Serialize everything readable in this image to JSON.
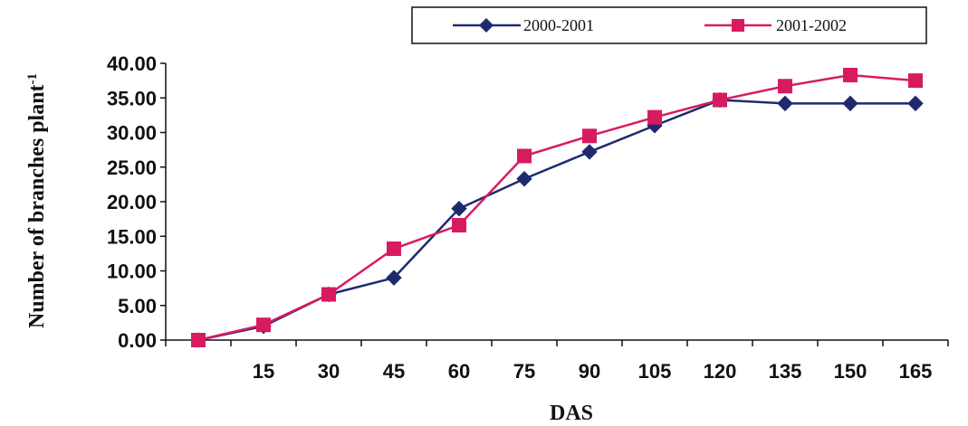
{
  "chart_data": {
    "type": "line",
    "categories": [
      "",
      "15",
      "30",
      "45",
      "60",
      "75",
      "90",
      "105",
      "120",
      "135",
      "150",
      "165"
    ],
    "xlabel": "DAS",
    "ylabel": "Number of branches plant",
    "ylabel_superscript": "-1",
    "ylim": [
      0,
      40
    ],
    "yticks": [
      "0.00",
      "5.00",
      "10.00",
      "15.00",
      "20.00",
      "25.00",
      "30.00",
      "35.00",
      "40.00"
    ],
    "grid": false,
    "legend_position": "top-right",
    "series": [
      {
        "name": "2000-2001",
        "color": "#1F2A6E",
        "marker": "diamond",
        "values": [
          0.0,
          2.0,
          6.6,
          9.0,
          19.0,
          23.3,
          27.2,
          31.0,
          34.7,
          34.2,
          34.2,
          34.2
        ]
      },
      {
        "name": "2001-2002",
        "color": "#D81B60",
        "marker": "square",
        "values": [
          0.0,
          2.2,
          6.6,
          13.2,
          16.6,
          26.6,
          29.5,
          32.2,
          34.7,
          36.7,
          38.3,
          37.5
        ]
      }
    ]
  }
}
